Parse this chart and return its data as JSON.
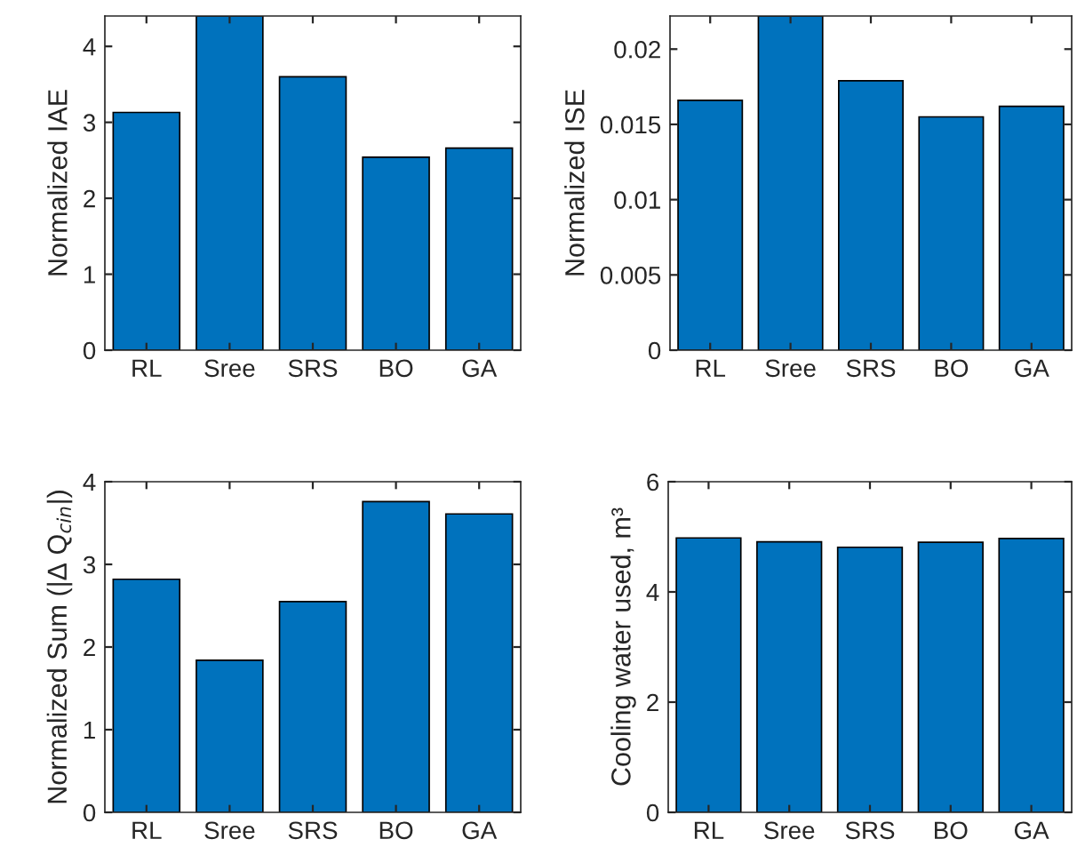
{
  "chart_data": [
    {
      "type": "bar",
      "categories": [
        "RL",
        "Sree",
        "SRS",
        "BO",
        "GA"
      ],
      "values": [
        3.13,
        4.4,
        3.6,
        2.54,
        2.66
      ],
      "color": "#0072bd",
      "ylabel": "Normalized IAE",
      "ylim": [
        0,
        4.4
      ],
      "yticks": [
        0,
        1,
        2,
        3,
        4
      ],
      "grid": false
    },
    {
      "type": "bar",
      "categories": [
        "RL",
        "Sree",
        "SRS",
        "BO",
        "GA"
      ],
      "values": [
        0.0166,
        0.0222,
        0.0179,
        0.0155,
        0.0162
      ],
      "color": "#0072bd",
      "ylabel": "Normalized ISE",
      "ylim": [
        0,
        0.0222
      ],
      "yticks": [
        0,
        0.005,
        0.01,
        0.015,
        0.02
      ],
      "grid": false
    },
    {
      "type": "bar",
      "categories": [
        "RL",
        "Sree",
        "SRS",
        "BO",
        "GA"
      ],
      "values": [
        2.82,
        1.84,
        2.55,
        3.76,
        3.61
      ],
      "color": "#0072bd",
      "ylabel": "Normalized Sum (|Δ Q$_{cin}$|)",
      "ylim": [
        0,
        4
      ],
      "yticks": [
        0,
        1,
        2,
        3,
        4
      ],
      "grid": false
    },
    {
      "type": "bar",
      "categories": [
        "RL",
        "Sree",
        "SRS",
        "BO",
        "GA"
      ],
      "values": [
        4.98,
        4.91,
        4.81,
        4.9,
        4.97
      ],
      "color": "#0072bd",
      "ylabel": "Cooling water used, m³",
      "ylim": [
        0,
        6
      ],
      "yticks": [
        0,
        2,
        4,
        6
      ],
      "grid": false
    }
  ]
}
